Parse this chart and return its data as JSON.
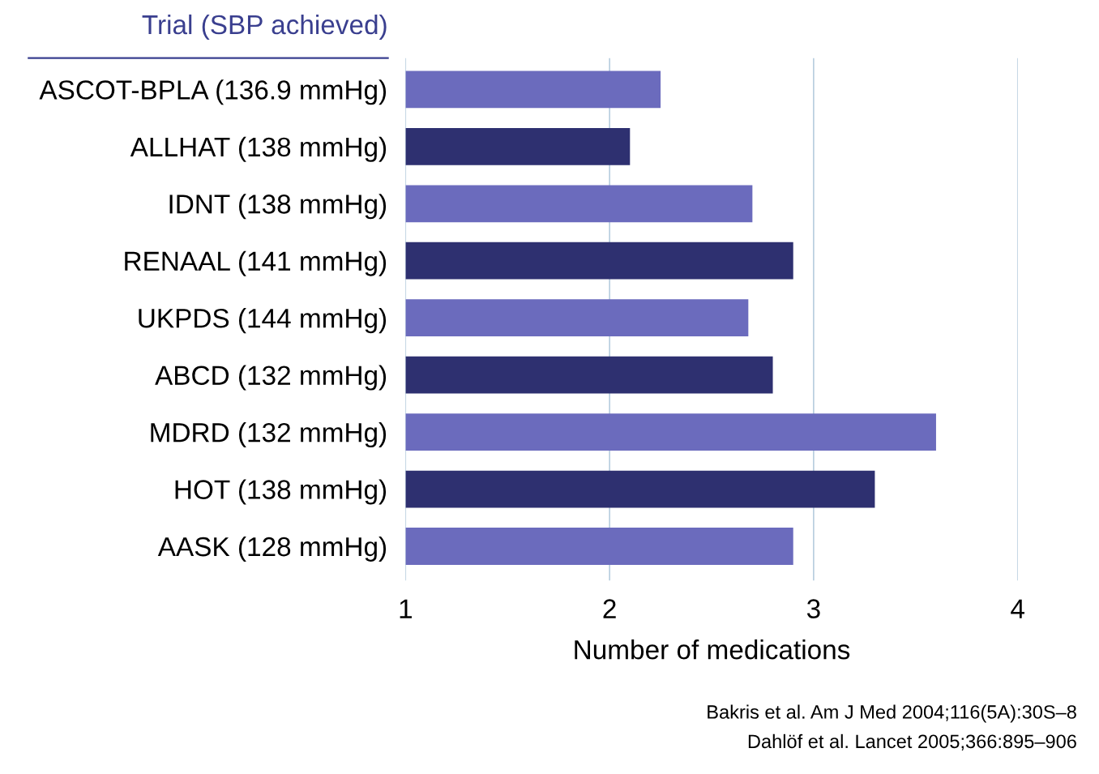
{
  "chart_data": {
    "type": "bar",
    "orientation": "horizontal",
    "ylabel": "Trial (SBP achieved)",
    "xlabel": "Number of medications",
    "categories": [
      "ASCOT-BPLA (136.9 mmHg)",
      "ALLHAT (138 mmHg)",
      "IDNT (138 mmHg)",
      "RENAAL (141 mmHg)",
      "UKPDS (144 mmHg)",
      "ABCD (132 mmHg)",
      "MDRD (132 mmHg)",
      "HOT (138 mmHg)",
      "AASK (128 mmHg)"
    ],
    "values": [
      2.25,
      2.1,
      2.7,
      2.9,
      2.68,
      2.8,
      3.6,
      3.3,
      2.9
    ],
    "colors": [
      "#6b6bbd",
      "#2e3070",
      "#6b6bbd",
      "#2e3070",
      "#6b6bbd",
      "#2e3070",
      "#6b6bbd",
      "#2e3070",
      "#6b6bbd"
    ],
    "xlim": [
      1,
      4
    ],
    "xticks": [
      1,
      2,
      3,
      4
    ],
    "grid": "x",
    "annotations": [
      "Bakris et al. Am J Med 2004;116(5A):30S–8",
      "Dahlöf et al. Lancet 2005;366:895–906"
    ]
  }
}
